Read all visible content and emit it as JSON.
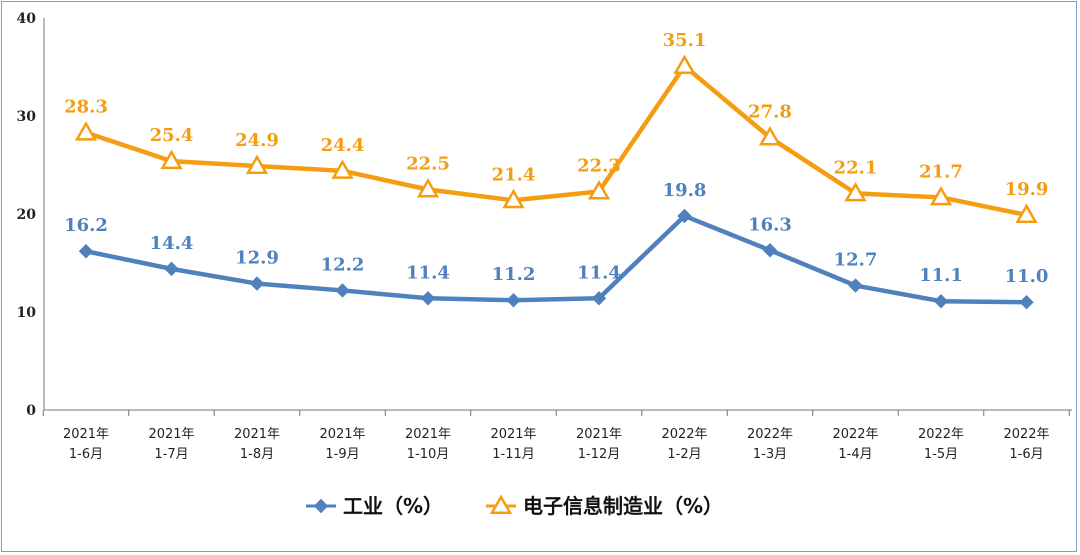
{
  "chart_data": {
    "type": "line",
    "categories": [
      [
        "2021年",
        "1-6月"
      ],
      [
        "2021年",
        "1-7月"
      ],
      [
        "2021年",
        "1-8月"
      ],
      [
        "2021年",
        "1-9月"
      ],
      [
        "2021年",
        "1-10月"
      ],
      [
        "2021年",
        "1-11月"
      ],
      [
        "2021年",
        "1-12月"
      ],
      [
        "2022年",
        "1-2月"
      ],
      [
        "2022年",
        "1-3月"
      ],
      [
        "2022年",
        "1-4月"
      ],
      [
        "2022年",
        "1-5月"
      ],
      [
        "2022年",
        "1-6月"
      ]
    ],
    "series": [
      {
        "name": "工业（%）",
        "color": "#4f81bd",
        "marker": "diamond",
        "values": [
          16.2,
          14.4,
          12.9,
          12.2,
          11.4,
          11.2,
          11.4,
          19.8,
          16.3,
          12.7,
          11.1,
          11.0
        ],
        "labels": [
          "16.2",
          "14.4",
          "12.9",
          "12.2",
          "11.4",
          "11.2",
          "11.4",
          "19.8",
          "16.3",
          "12.7",
          "11.1",
          "11.0"
        ]
      },
      {
        "name": "电子信息制造业（%）",
        "color": "#f59d12",
        "marker": "triangle",
        "values": [
          28.3,
          25.4,
          24.9,
          24.4,
          22.5,
          21.4,
          22.3,
          35.1,
          27.8,
          22.1,
          21.7,
          19.9
        ],
        "labels": [
          "28.3",
          "25.4",
          "24.9",
          "24.4",
          "22.5",
          "21.4",
          "22.3",
          "35.1",
          "27.8",
          "22.1",
          "21.7",
          "19.9"
        ]
      }
    ],
    "ylim": [
      0,
      40
    ],
    "yticks": [
      "0",
      "10",
      "20",
      "30",
      "40"
    ],
    "grid": false,
    "legend_position": "bottom"
  }
}
